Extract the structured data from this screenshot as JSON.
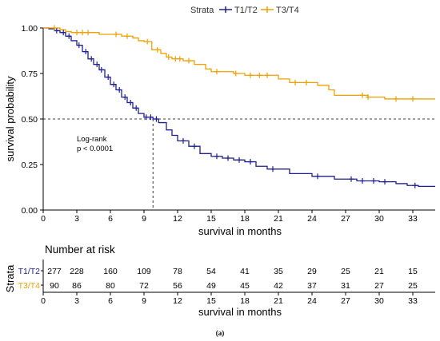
{
  "legend": {
    "title": "Strata",
    "entries": [
      {
        "label": "T1/T2",
        "color": "#1f1f8f"
      },
      {
        "label": "T3/T4",
        "color": "#f0a000"
      }
    ]
  },
  "annotation": {
    "line1": "Log-rank",
    "line2": "p < 0.0001"
  },
  "chart_data": {
    "type": "line",
    "subtype": "kaplan-meier step curve",
    "xlabel": "survival in months",
    "ylabel": "survival probability",
    "xlim": [
      0,
      35
    ],
    "ylim": [
      0,
      1
    ],
    "xticks": [
      0,
      3,
      6,
      9,
      12,
      15,
      18,
      21,
      24,
      27,
      30,
      33
    ],
    "yticks": [
      "0.00",
      "0.25",
      "0.50",
      "0.75",
      "1.00"
    ],
    "yticks_values": [
      0,
      0.25,
      0.5,
      0.75,
      1.0
    ],
    "median_line": {
      "y": 0.5,
      "x": 9.8
    },
    "series": [
      {
        "name": "T1/T2",
        "color": "#1f1f8f",
        "steps": [
          [
            0,
            1.0
          ],
          [
            0.5,
            0.995
          ],
          [
            1.0,
            0.985
          ],
          [
            1.5,
            0.975
          ],
          [
            2.0,
            0.955
          ],
          [
            2.5,
            0.93
          ],
          [
            3.0,
            0.905
          ],
          [
            3.5,
            0.87
          ],
          [
            4.0,
            0.83
          ],
          [
            4.5,
            0.8
          ],
          [
            5.0,
            0.77
          ],
          [
            5.5,
            0.73
          ],
          [
            6.0,
            0.69
          ],
          [
            6.5,
            0.66
          ],
          [
            7.0,
            0.62
          ],
          [
            7.5,
            0.59
          ],
          [
            8.0,
            0.56
          ],
          [
            8.5,
            0.53
          ],
          [
            9.0,
            0.51
          ],
          [
            9.8,
            0.5
          ],
          [
            10.3,
            0.48
          ],
          [
            11.0,
            0.44
          ],
          [
            11.5,
            0.41
          ],
          [
            12.0,
            0.38
          ],
          [
            13.0,
            0.35
          ],
          [
            14.0,
            0.31
          ],
          [
            15.0,
            0.295
          ],
          [
            16.0,
            0.285
          ],
          [
            17.0,
            0.275
          ],
          [
            18.0,
            0.265
          ],
          [
            19.0,
            0.24
          ],
          [
            20.0,
            0.225
          ],
          [
            22.0,
            0.2
          ],
          [
            24.0,
            0.185
          ],
          [
            26.0,
            0.17
          ],
          [
            28.0,
            0.16
          ],
          [
            30.0,
            0.155
          ],
          [
            31.5,
            0.145
          ],
          [
            32.5,
            0.135
          ],
          [
            33.5,
            0.13
          ],
          [
            35,
            0.13
          ]
        ],
        "censor_x": [
          1.2,
          1.8,
          2.3,
          3.2,
          3.8,
          4.3,
          4.8,
          5.2,
          5.8,
          6.3,
          6.8,
          7.3,
          7.8,
          8.3,
          9.2,
          9.6,
          10.1,
          12.5,
          13.5,
          15.5,
          16.5,
          17.5,
          18.5,
          20.5,
          24.5,
          27.5,
          28.5,
          29.5,
          30.5,
          33.2
        ]
      },
      {
        "name": "T3/T4",
        "color": "#f0a000",
        "steps": [
          [
            0,
            1.0
          ],
          [
            1.5,
            0.99
          ],
          [
            2.0,
            0.98
          ],
          [
            2.5,
            0.975
          ],
          [
            5.0,
            0.965
          ],
          [
            7.0,
            0.955
          ],
          [
            8.0,
            0.945
          ],
          [
            8.5,
            0.93
          ],
          [
            9.0,
            0.925
          ],
          [
            9.7,
            0.88
          ],
          [
            10.5,
            0.86
          ],
          [
            11.0,
            0.84
          ],
          [
            11.5,
            0.83
          ],
          [
            12.5,
            0.82
          ],
          [
            13.5,
            0.8
          ],
          [
            14.5,
            0.775
          ],
          [
            15.0,
            0.76
          ],
          [
            17.0,
            0.75
          ],
          [
            18.0,
            0.74
          ],
          [
            21.0,
            0.72
          ],
          [
            22.0,
            0.7
          ],
          [
            24.5,
            0.685
          ],
          [
            25.5,
            0.66
          ],
          [
            26.0,
            0.63
          ],
          [
            29.0,
            0.62
          ],
          [
            30.5,
            0.61
          ],
          [
            33.0,
            0.61
          ],
          [
            35,
            0.61
          ]
        ],
        "censor_x": [
          1.0,
          3.0,
          3.5,
          4.0,
          6.5,
          7.5,
          9.3,
          10.2,
          11.2,
          11.8,
          12.2,
          13.0,
          15.5,
          17.2,
          18.5,
          19.3,
          20.0,
          22.5,
          23.5,
          28.5,
          29.0,
          31.5,
          33.0
        ]
      }
    ]
  },
  "risk_table": {
    "title": "Number at risk",
    "ylabel": "Strata",
    "xlabel": "survival in months",
    "xticks": [
      0,
      3,
      6,
      9,
      12,
      15,
      18,
      21,
      24,
      27,
      30,
      33
    ],
    "rows": [
      {
        "label": "T1/T2",
        "color": "#1f1f8f",
        "values": [
          "277",
          "228",
          "160",
          "109",
          "78",
          "54",
          "41",
          "35",
          "29",
          "25",
          "21",
          "15"
        ]
      },
      {
        "label": "T3/T4",
        "color": "#f0a000",
        "values": [
          "90",
          "86",
          "80",
          "72",
          "56",
          "49",
          "45",
          "42",
          "37",
          "31",
          "27",
          "25"
        ]
      }
    ]
  },
  "caption": "(a)"
}
